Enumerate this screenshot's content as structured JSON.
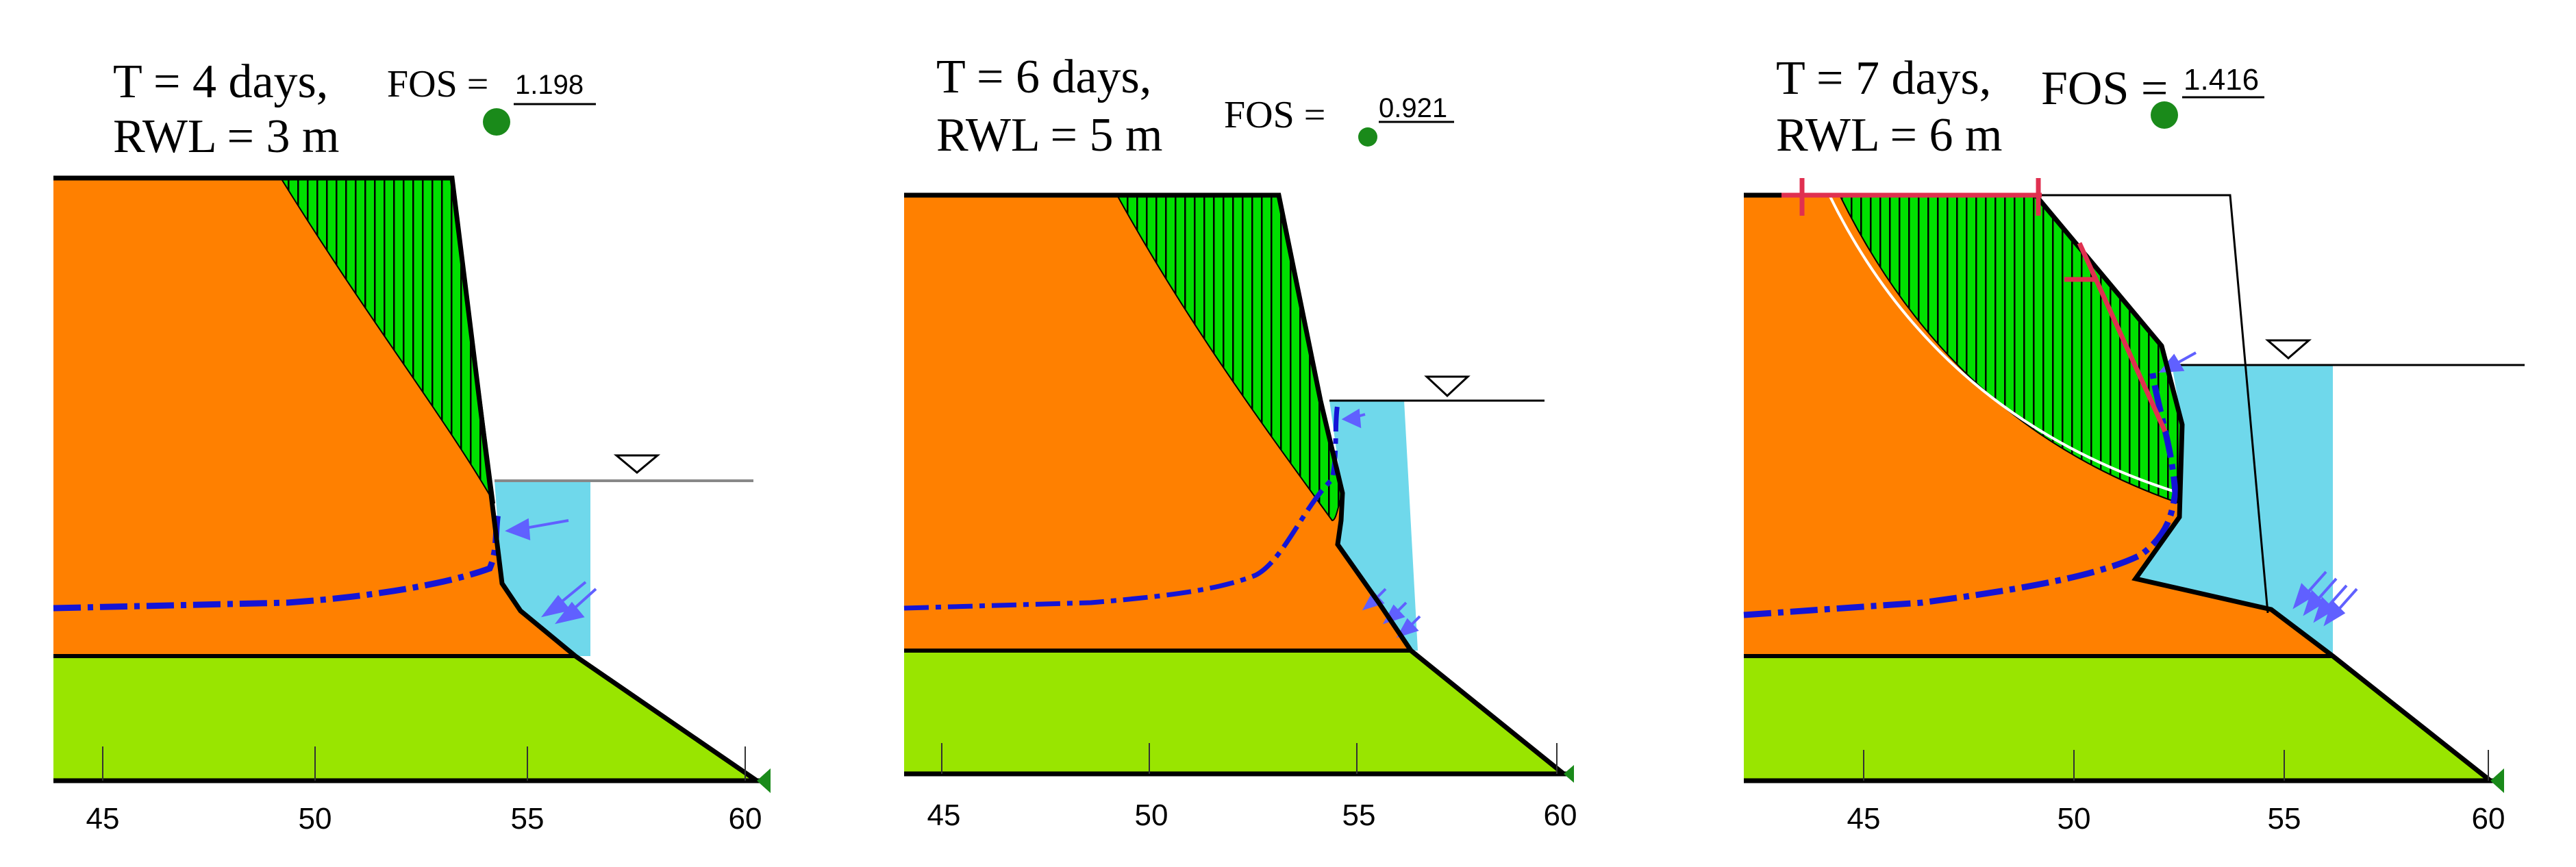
{
  "panels": [
    {
      "time_label": "T = 4 days,",
      "rwl_label": "RWL = 3 m",
      "fos_label": "FOS =",
      "fos_value": "1.198"
    },
    {
      "time_label": "T = 6 days,",
      "rwl_label": "RWL = 5 m",
      "fos_label": "FOS =",
      "fos_value": "0.921"
    },
    {
      "time_label": "T = 7 days,",
      "rwl_label": "RWL = 6 m",
      "fos_label": "FOS =",
      "fos_value": "1.416"
    }
  ],
  "axis": {
    "ticks": [
      "45",
      "50",
      "55",
      "60"
    ]
  },
  "colors": {
    "upper_soil": "#FF8000",
    "lower_soil": "#99E500",
    "slip_mass": "#00E000",
    "reservoir_water": "#6FD8EB",
    "phreatic_line": "#1414D6",
    "critical_surface_marker": "#E03050",
    "center_dot": "#1A8A1A",
    "arrows": "#6060FF"
  }
}
